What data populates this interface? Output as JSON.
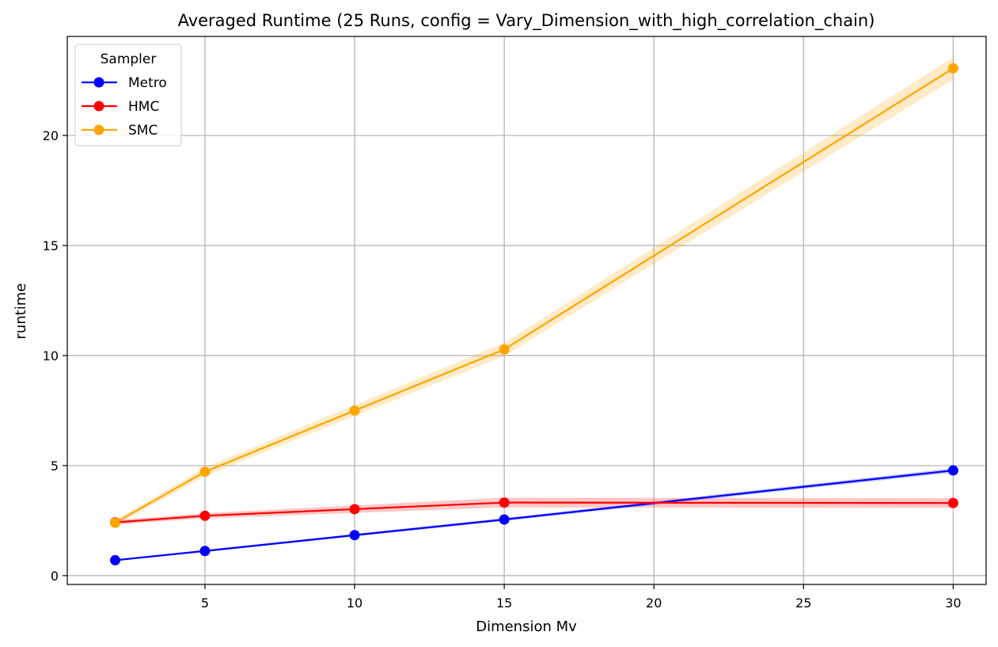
{
  "chart_data": {
    "type": "line",
    "title": "Averaged Runtime (25 Runs, config = Vary_Dimension_with_high_correlation_chain)",
    "xlabel": "Dimension Mv",
    "ylabel": "runtime",
    "xlim": [
      0.4,
      31.1
    ],
    "ylim": [
      -0.4,
      24.5
    ],
    "x_ticks": [
      5,
      10,
      15,
      20,
      25,
      30
    ],
    "y_ticks": [
      0,
      5,
      10,
      15,
      20
    ],
    "grid": true,
    "legend": {
      "title": "Sampler",
      "position": "top-left"
    },
    "x": [
      2,
      5,
      10,
      15,
      30
    ],
    "series": [
      {
        "name": "Metro",
        "color": "#0000ff",
        "values": [
          0.7,
          1.12,
          1.84,
          2.55,
          4.78
        ],
        "band": [
          0.04,
          0.05,
          0.06,
          0.07,
          0.1
        ]
      },
      {
        "name": "HMC",
        "color": "#ff0000",
        "values": [
          2.42,
          2.72,
          3.02,
          3.32,
          3.3
        ],
        "band": [
          0.1,
          0.12,
          0.17,
          0.22,
          0.22
        ]
      },
      {
        "name": "SMC",
        "color": "#ffa500",
        "values": [
          2.4,
          4.72,
          7.5,
          10.28,
          23.05
        ],
        "band": [
          0.12,
          0.2,
          0.25,
          0.3,
          0.5
        ]
      }
    ]
  }
}
